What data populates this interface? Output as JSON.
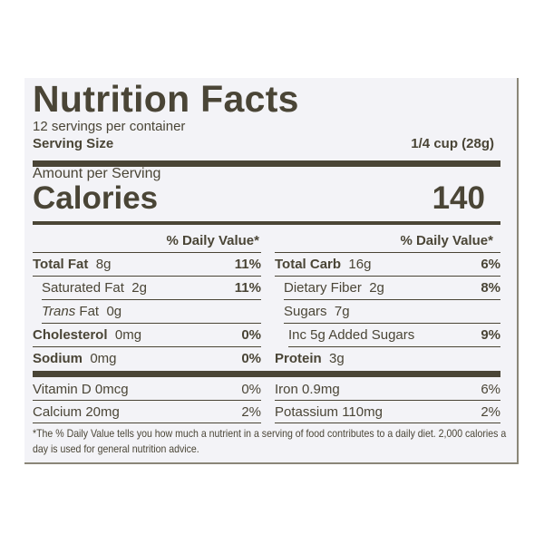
{
  "title": "Nutrition Facts",
  "servings_per_container": "12 servings per container",
  "serving_size": {
    "label": "Serving Size",
    "value": "1/4 cup (28g)"
  },
  "amount_per_serving": "Amount per Serving",
  "calories": {
    "label": "Calories",
    "value": "140"
  },
  "daily_value_header": "% Daily Value*",
  "left_nutrients": [
    {
      "name": "Total Fat",
      "amount": "8g",
      "dv": "11%",
      "bold": true
    },
    {
      "name": "Saturated Fat",
      "amount": "2g",
      "dv": "11%",
      "bold": false
    },
    {
      "name": "Trans",
      "name_suffix": "Fat",
      "amount": "0g",
      "dv": "",
      "bold": false
    },
    {
      "name": "Cholesterol",
      "amount": "0mg",
      "dv": "0%",
      "bold": true
    },
    {
      "name": "Sodium",
      "amount": "0mg",
      "dv": "0%",
      "bold": true
    }
  ],
  "right_nutrients": [
    {
      "name": "Total Carb",
      "amount": "16g",
      "dv": "6%",
      "bold": true
    },
    {
      "name": "Dietary Fiber",
      "amount": "2g",
      "dv": "8%",
      "bold": false
    },
    {
      "name": "Sugars",
      "amount": "7g",
      "dv": "",
      "bold": false
    },
    {
      "name": "Inc 5g Added Sugars",
      "amount": "",
      "dv": "9%",
      "bold": false
    },
    {
      "name": "Protein",
      "amount": "3g",
      "dv": "",
      "bold": true
    }
  ],
  "vitamins_left": [
    {
      "name": "Vitamin D 0mcg",
      "dv": "0%"
    },
    {
      "name": "Calcium 20mg",
      "dv": "2%"
    }
  ],
  "vitamins_right": [
    {
      "name": "Iron 0.9mg",
      "dv": "6%"
    },
    {
      "name": "Potassium 110mg",
      "dv": "2%"
    }
  ],
  "footnote": "*The % Daily Value tells you how much a nutrient in a serving of food contributes to a daily diet. 2,000 calories a day is used for general nutrition advice.",
  "colors": {
    "ink": "#4a4536",
    "label_bg": "#f3f3f7"
  }
}
